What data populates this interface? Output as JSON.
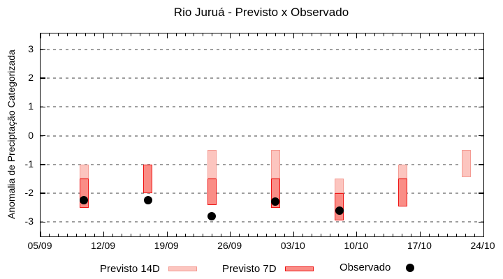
{
  "chart_data": {
    "type": "bar",
    "title": "Rio Juruá - Previsto x Observado",
    "ylabel": "Anomalia de Preciptação Categorizada",
    "xlabel": "",
    "ylim": [
      -3.5,
      3.55
    ],
    "y_ticks": [
      3,
      2,
      1,
      0,
      -1,
      -2,
      -3
    ],
    "grid": "horizontal-dashed",
    "x_domain_days": 49,
    "x_tick_every_days": 7,
    "x_tick_labels": [
      "05/09",
      "12/09",
      "19/09",
      "26/09",
      "03/10",
      "10/10",
      "17/10",
      "24/10"
    ],
    "legend": {
      "previsto_14d": "Previsto 14D",
      "previsto_7d": "Previsto 7D",
      "observado": "Observado"
    },
    "legend_position": "bottom",
    "groups": [
      {
        "date": "10/09",
        "day": 4.8,
        "previsto_14d": [
          -1.0,
          -1.5
        ],
        "previsto_7d": [
          -1.5,
          -2.5
        ],
        "observado": -2.25
      },
      {
        "date": "17/09",
        "day": 11.9,
        "previsto_14d": null,
        "previsto_7d": [
          -1.0,
          -2.0
        ],
        "observado": -2.25
      },
      {
        "date": "24/09",
        "day": 18.95,
        "previsto_14d": [
          -0.5,
          -1.5
        ],
        "previsto_7d": [
          -1.5,
          -2.4
        ],
        "observado": -2.8
      },
      {
        "date": "01/10",
        "day": 26.0,
        "previsto_14d": [
          -0.5,
          -1.5
        ],
        "previsto_7d": [
          -1.5,
          -2.5
        ],
        "observado": -2.3
      },
      {
        "date": "08/10",
        "day": 33.05,
        "previsto_14d": [
          -1.5,
          -2.0
        ],
        "previsto_7d": [
          -2.0,
          -2.95
        ],
        "observado": -2.6
      },
      {
        "date": "15/10",
        "day": 40.1,
        "previsto_14d": [
          -1.0,
          -1.5
        ],
        "previsto_7d": [
          -1.5,
          -2.45
        ],
        "observado": null
      },
      {
        "date": "22/10",
        "day": 47.1,
        "previsto_14d": [
          -0.5,
          -1.45
        ],
        "previsto_7d": null,
        "observado": null
      }
    ],
    "colors": {
      "previsto_14d_fill": "#fcc5bf",
      "previsto_14d_border": "#f49b93",
      "previsto_7d_fill": "#fa8d86",
      "previsto_7d_border": "#ee1414",
      "observado": "#000000",
      "grid": "#9e9e9e",
      "axis": "#000000",
      "background": "#ffffff"
    }
  }
}
